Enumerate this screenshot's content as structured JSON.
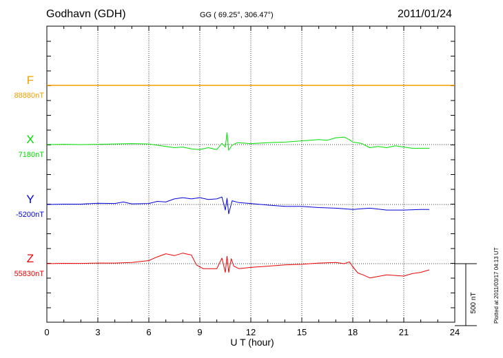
{
  "header": {
    "station": "Godhavn (GDH)",
    "coords": "GG ( 69.25°, 306.47°)",
    "date": "2011/01/24"
  },
  "footer_note": "Plotted at 2011/03/17 04:13 UT",
  "colors": {
    "F": "#f0a000",
    "X": "#00dd00",
    "Y": "#0000dd",
    "Z": "#ee0000",
    "axis": "#000000"
  },
  "chart_data": {
    "type": "line",
    "xlabel": "U T (hour)",
    "x_ticks": [
      0,
      3,
      6,
      9,
      12,
      15,
      18,
      21,
      24
    ],
    "xlim": [
      0,
      24
    ],
    "grid": true,
    "scale_bar_label": "500 nT",
    "scale_bar_nT": 500,
    "series": [
      {
        "name": "F",
        "baseline_label": "88880nT",
        "baseline_nT": 88880,
        "x": [
          0,
          24
        ],
        "dev_nT": [
          0,
          0
        ]
      },
      {
        "name": "X",
        "baseline_label": "7180nT",
        "baseline_nT": 7180,
        "x": [
          0,
          1,
          2,
          3,
          4,
          5,
          6,
          6.5,
          7,
          7.5,
          8,
          8.5,
          9,
          9.5,
          10,
          10.3,
          10.5,
          10.6,
          10.7,
          10.9,
          11.2,
          12,
          13,
          14,
          15,
          16,
          16.5,
          17,
          17.5,
          17.8,
          18,
          18.5,
          19,
          19.5,
          20,
          20.5,
          21,
          21.5,
          22,
          22.5
        ],
        "dev_nT": [
          0,
          2,
          0,
          2,
          5,
          8,
          5,
          -5,
          -15,
          -25,
          -20,
          -35,
          -40,
          -25,
          -40,
          10,
          -20,
          95,
          -45,
          -5,
          15,
          8,
          15,
          20,
          30,
          40,
          35,
          55,
          60,
          40,
          20,
          10,
          -25,
          -15,
          -25,
          -10,
          -20,
          -30,
          -30,
          -30
        ]
      },
      {
        "name": "Y",
        "baseline_label": "-5200nT",
        "baseline_nT": -5200,
        "x": [
          0,
          1,
          2,
          3,
          4,
          4.5,
          5,
          6,
          6.5,
          7,
          7.5,
          8,
          8.5,
          9,
          9.5,
          10,
          10.3,
          10.5,
          10.6,
          10.7,
          10.9,
          11.3,
          12,
          13,
          14,
          15,
          16,
          17,
          18,
          18.5,
          19,
          20,
          21,
          22,
          22.5
        ],
        "dev_nT": [
          0,
          3,
          3,
          10,
          8,
          20,
          5,
          8,
          25,
          20,
          45,
          55,
          45,
          55,
          40,
          45,
          60,
          -45,
          50,
          -75,
          30,
          15,
          8,
          -5,
          -15,
          -15,
          -25,
          -30,
          -40,
          -35,
          -30,
          -45,
          -45,
          -40,
          -40
        ]
      },
      {
        "name": "Z",
        "baseline_label": "55830nT",
        "baseline_nT": 55830,
        "x": [
          0,
          1,
          2,
          3,
          4,
          5,
          6,
          6.5,
          7,
          7.5,
          8,
          8.5,
          8.8,
          9.2,
          9.6,
          10,
          10.3,
          10.5,
          10.6,
          10.7,
          10.85,
          11,
          11.3,
          12,
          13,
          14,
          15,
          16,
          17,
          17.5,
          17.8,
          18,
          18.3,
          18.6,
          19,
          20,
          21,
          21.5,
          22,
          22.5
        ],
        "dev_nT": [
          0,
          3,
          2,
          5,
          5,
          10,
          25,
          55,
          80,
          65,
          85,
          70,
          -10,
          -40,
          -40,
          -40,
          45,
          -70,
          60,
          -70,
          40,
          -20,
          -40,
          -30,
          -20,
          -10,
          -5,
          5,
          10,
          0,
          15,
          -25,
          -75,
          -90,
          -115,
          -90,
          -100,
          -80,
          -70,
          -50
        ]
      }
    ]
  }
}
